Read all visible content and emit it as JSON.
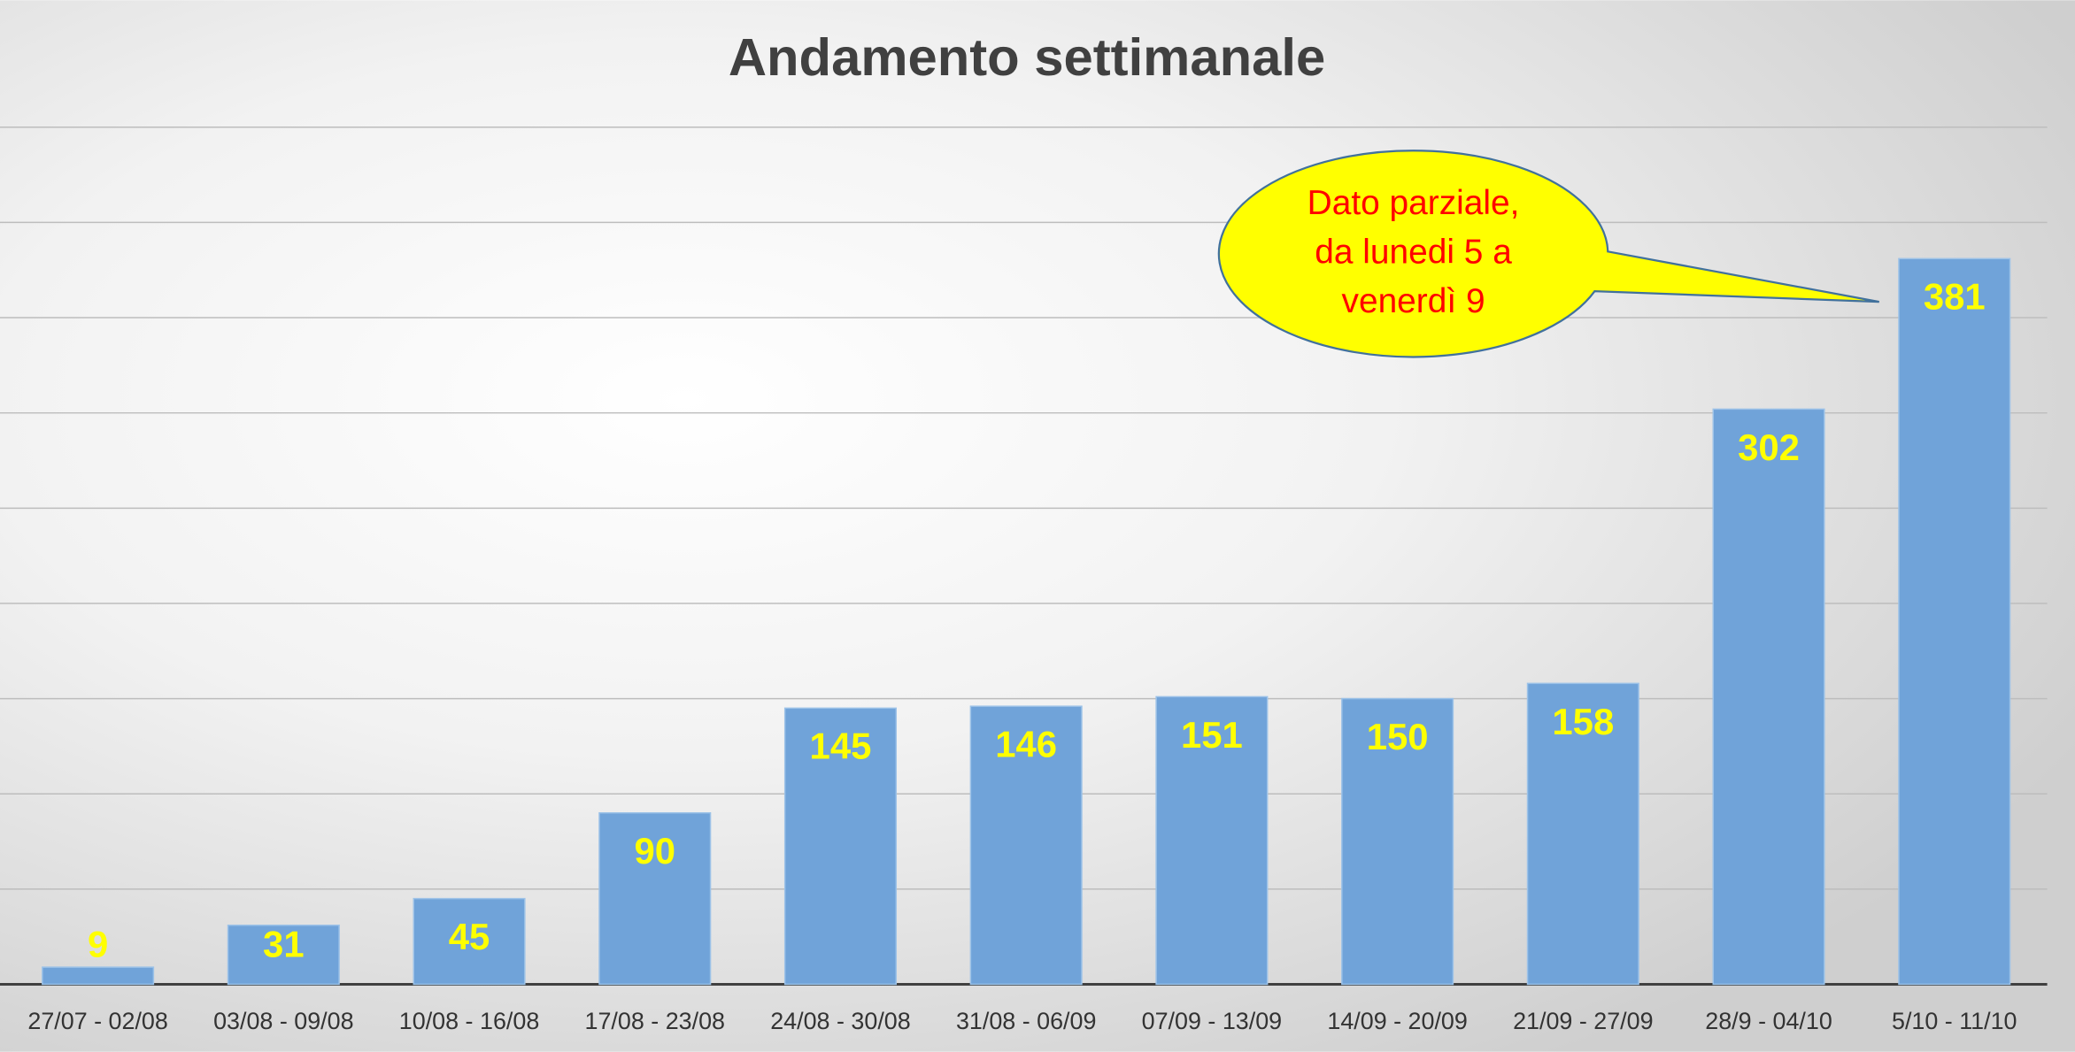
{
  "chart_data": {
    "type": "bar",
    "title": "Andamento settimanale",
    "categories": [
      "27/07 - 02/08",
      "03/08 - 09/08",
      "10/08 - 16/08",
      "17/08 - 23/08",
      "24/08 - 30/08",
      "31/08 - 06/09",
      "07/09 - 13/09",
      "14/09 - 20/09",
      "21/09 - 27/09",
      "28/9 - 04/10",
      "5/10 - 11/10"
    ],
    "values": [
      9,
      31,
      45,
      90,
      145,
      146,
      151,
      150,
      158,
      302,
      381
    ],
    "color": "#70a3d9",
    "ylim": [
      0,
      450
    ],
    "yticks": [
      0,
      50,
      100,
      150,
      200,
      250,
      300,
      350,
      400,
      450
    ],
    "grid": true,
    "annotation": [
      "Dato parziale,",
      "da lunedi 5 a",
      "venerdì 9"
    ]
  }
}
